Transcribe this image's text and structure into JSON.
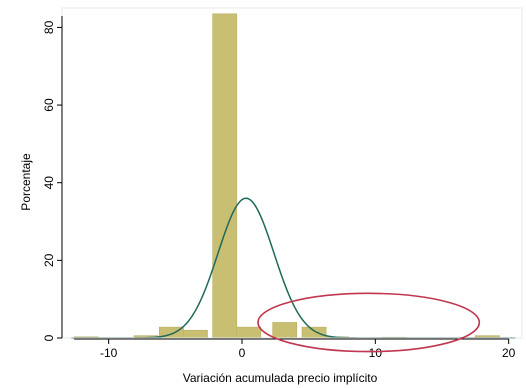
{
  "chart_data": {
    "type": "bar",
    "xlabel": "Variación acumulada precio implícito",
    "ylabel": "Porcentaje",
    "xlim": [
      -13.5,
      21
    ],
    "ylim": [
      0,
      85
    ],
    "grid": false,
    "x_ticks": [
      -10,
      0,
      10,
      20
    ],
    "y_ticks": [
      0,
      20,
      40,
      60,
      80
    ],
    "bin_width": 1.81,
    "bins": [
      {
        "start": -12.6,
        "value": 0.3
      },
      {
        "start": -8.1,
        "value": 0.6
      },
      {
        "start": -6.2,
        "value": 2.8
      },
      {
        "start": -4.4,
        "value": 2.0
      },
      {
        "start": -2.2,
        "value": 83.5
      },
      {
        "start": -0.4,
        "value": 2.8
      },
      {
        "start": 2.3,
        "value": 4.0
      },
      {
        "start": 4.5,
        "value": 2.8
      },
      {
        "start": 6.2,
        "value": 0.3
      },
      {
        "start": 10.5,
        "value": 0.2
      },
      {
        "start": 17.5,
        "value": 0.6
      }
    ],
    "density_curve": {
      "mean": 0.3,
      "sd": 2.1,
      "peak": 36.0
    },
    "annotation": {
      "shape": "ellipse",
      "center": [
        9.5,
        4.0
      ],
      "rx": 8.3,
      "ry": 7.5
    },
    "colors": {
      "bar": "#c9bf73",
      "bar_edge": "#b9ae62",
      "curve": "#1f6a5a",
      "annotation": "#c0374f",
      "frame": "#e8e8e8"
    }
  }
}
